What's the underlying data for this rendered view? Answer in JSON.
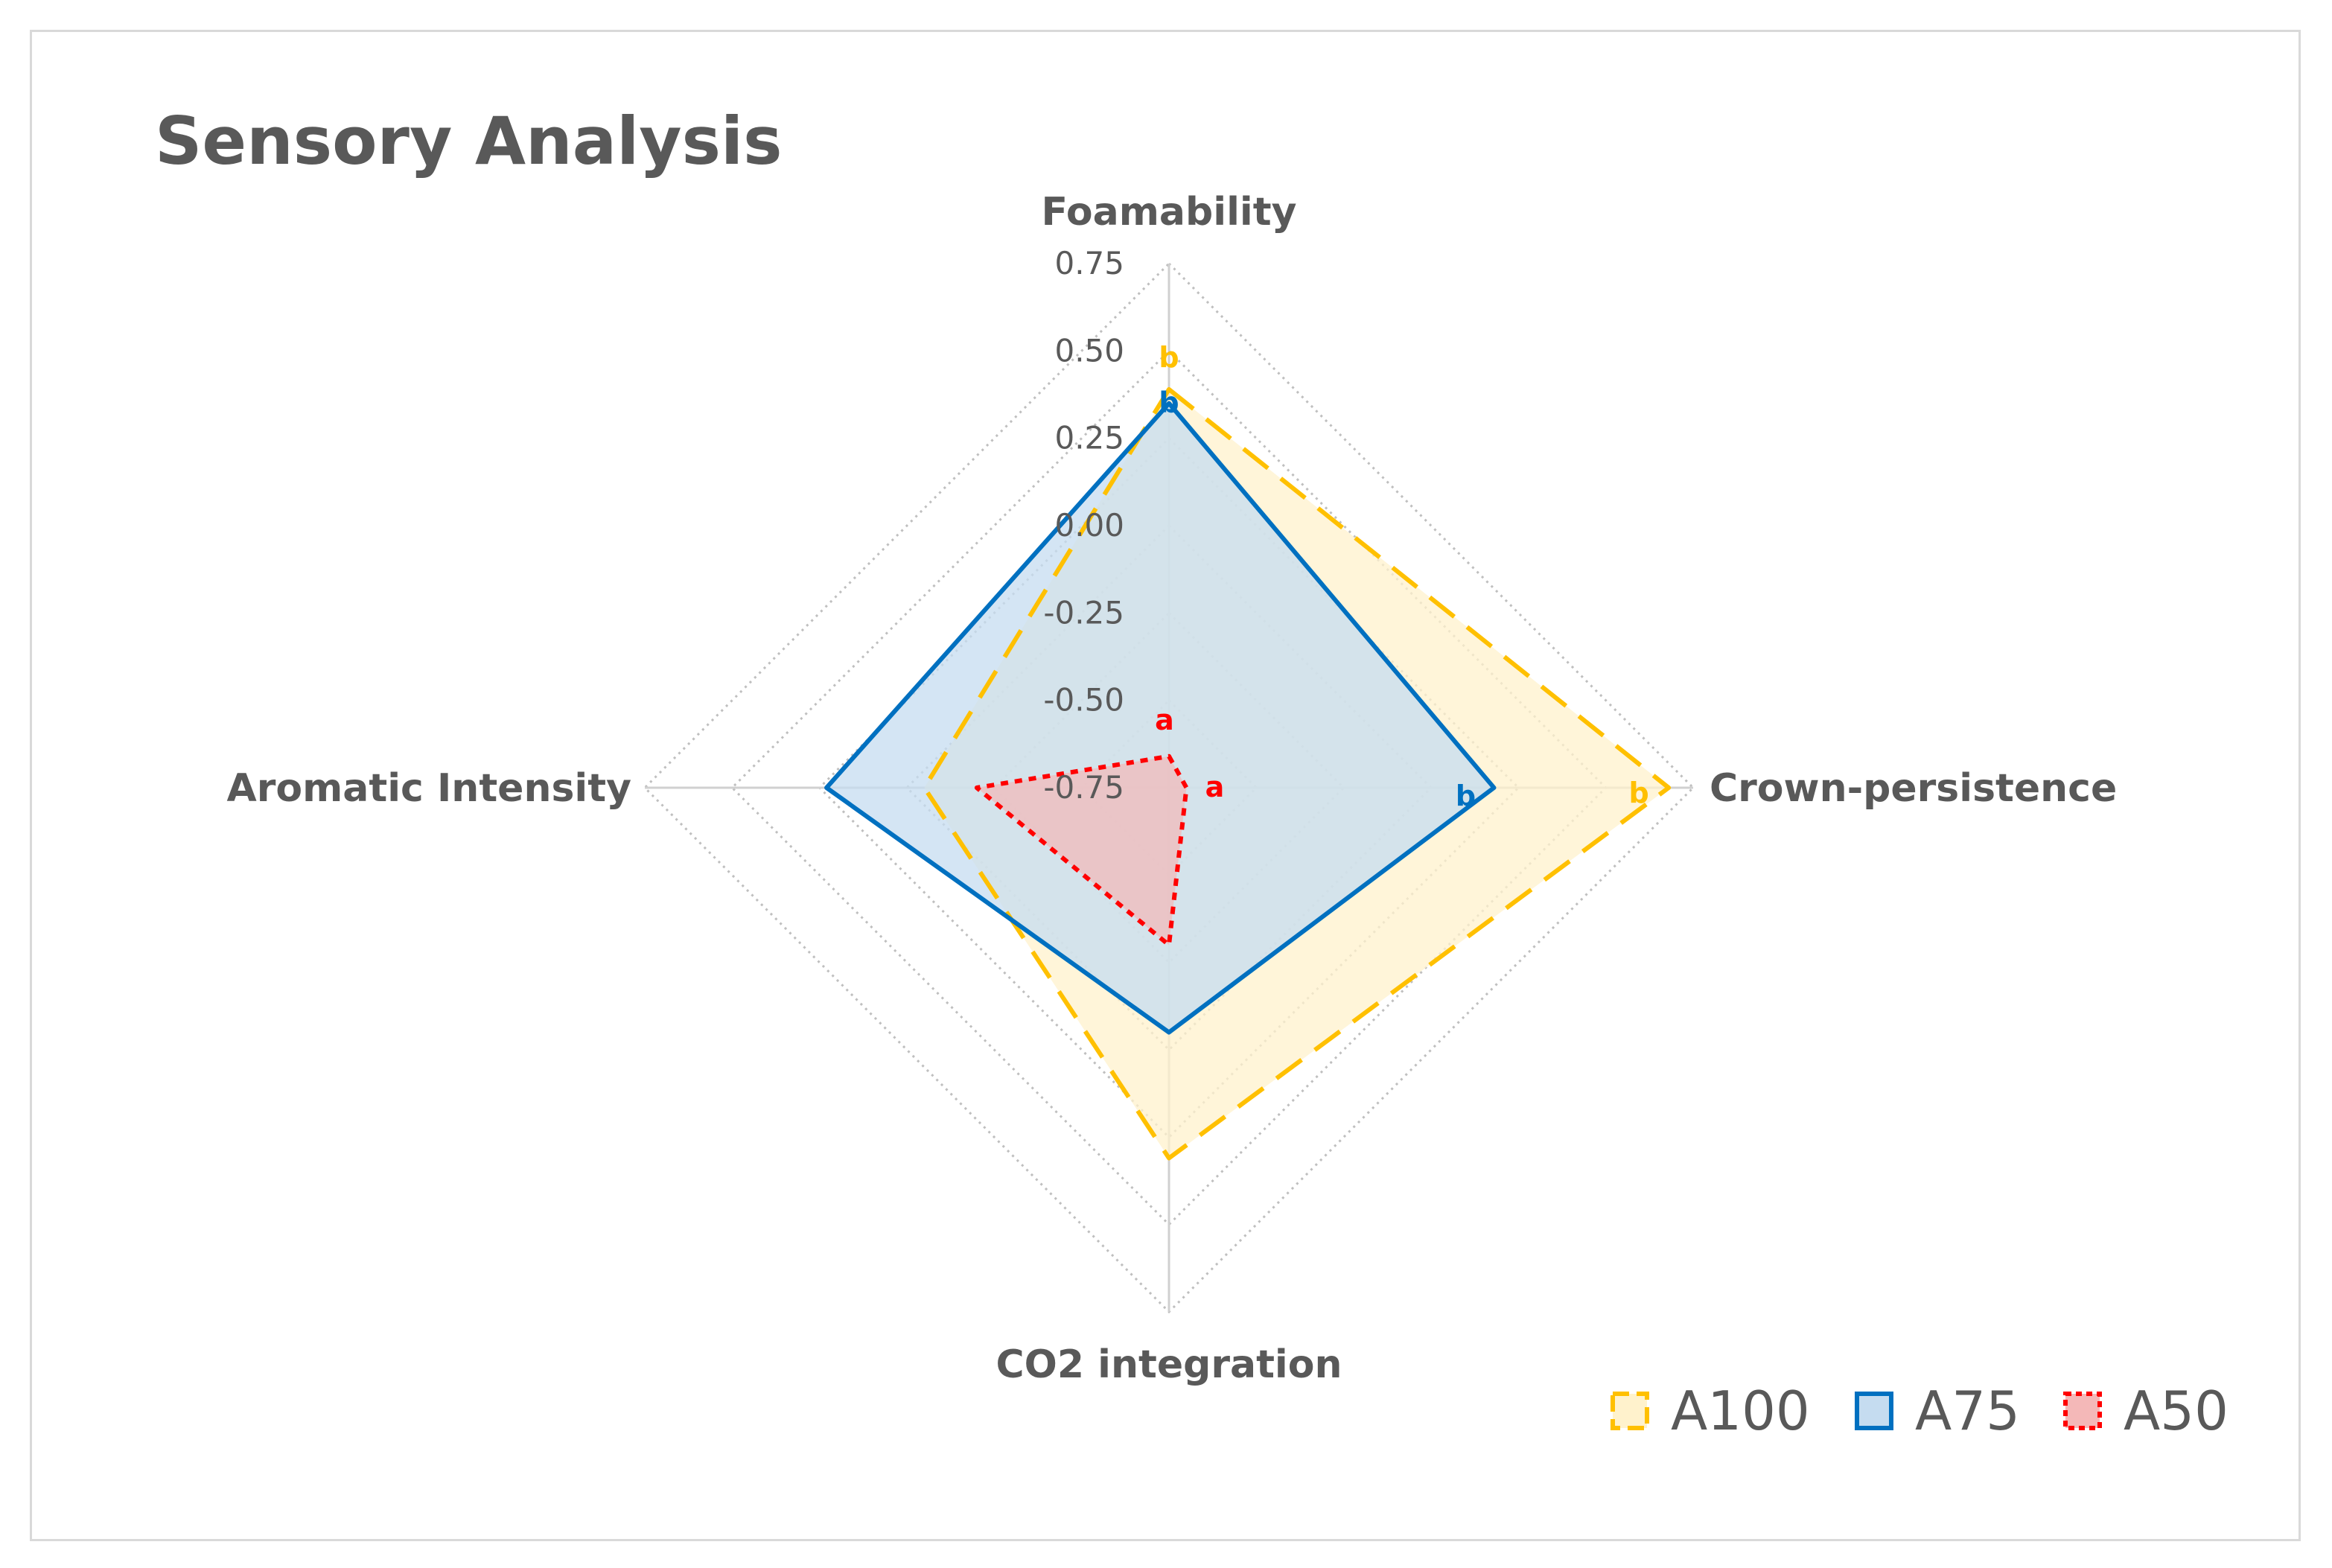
{
  "chart_data": {
    "type": "radar",
    "title": "Sensory Analysis",
    "axes": [
      "Foamability",
      "Crown-persistence",
      "CO2 integration",
      "Aromatic Intensity"
    ],
    "tick_labels": [
      "0.75",
      "0.50",
      "0.25",
      "0.00",
      "-0.25",
      "-0.50",
      "-0.75"
    ],
    "range": [
      -0.75,
      0.75
    ],
    "tick_step": 0.25,
    "grid": true,
    "legend_position": "bottom-right",
    "series": [
      {
        "name": "A100",
        "values": [
          0.39,
          0.68,
          0.31,
          -0.05
        ],
        "letters": [
          "b",
          "b",
          "",
          ""
        ],
        "color": "#ffc000",
        "fill": "#fff2cc",
        "dash": "dashed"
      },
      {
        "name": "A75",
        "values": [
          0.35,
          0.18,
          -0.05,
          0.23
        ],
        "letters": [
          "b",
          "b",
          "",
          ""
        ],
        "color": "#0070c0",
        "fill": "#c5dcf0",
        "dash": "solid"
      },
      {
        "name": "A50",
        "values": [
          -0.66,
          -0.7,
          -0.3,
          -0.2
        ],
        "letters": [
          "a",
          "a",
          "",
          ""
        ],
        "color": "#ff0000",
        "fill": "#f4b8b8",
        "dash": "dotted"
      }
    ]
  }
}
